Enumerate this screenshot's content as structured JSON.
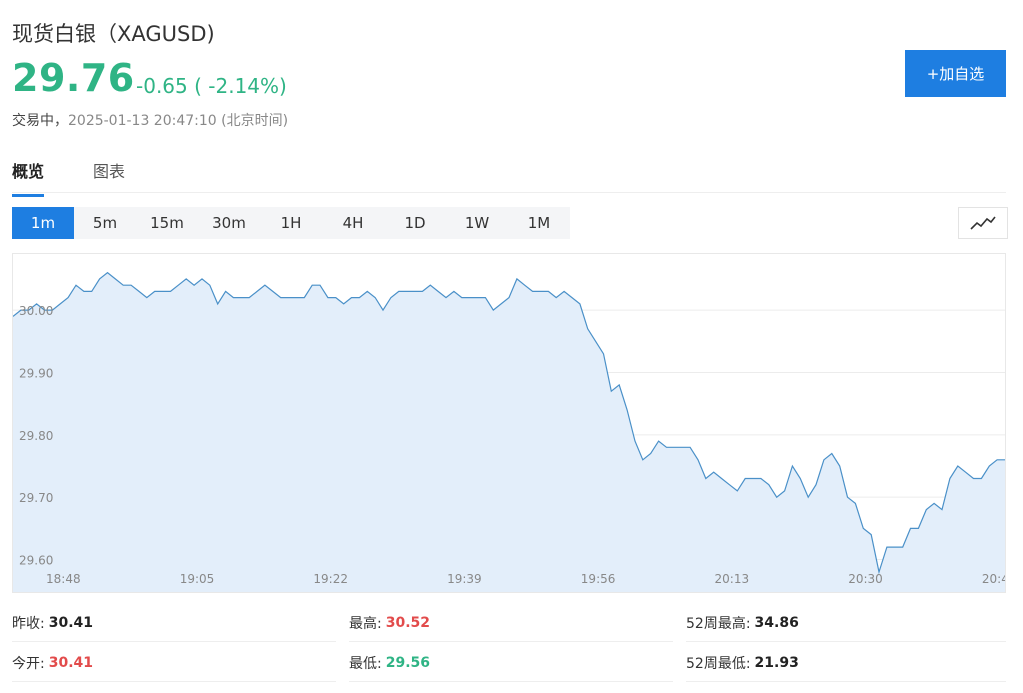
{
  "header": {
    "title": "现货白银（XAGUSD)",
    "price": "29.76",
    "change": "-0.65 ( -2.14%)",
    "status_label": "交易中，",
    "status_time": "2025-01-13 20:47:10 (北京时间)",
    "add_button": "+加自选"
  },
  "tabs": [
    {
      "label": "概览",
      "active": true
    },
    {
      "label": "图表",
      "active": false
    }
  ],
  "periods": [
    {
      "label": "1m",
      "active": true
    },
    {
      "label": "5m",
      "active": false
    },
    {
      "label": "15m",
      "active": false
    },
    {
      "label": "30m",
      "active": false
    },
    {
      "label": "1H",
      "active": false
    },
    {
      "label": "4H",
      "active": false
    },
    {
      "label": "1D",
      "active": false
    },
    {
      "label": "1W",
      "active": false
    },
    {
      "label": "1M",
      "active": false
    }
  ],
  "chart_icon": "line-chart-icon",
  "colors": {
    "accent": "#1e7ee1",
    "down": "#2fb485",
    "up": "#e24b4b",
    "line": "#4a90c8",
    "fill": "#e3eefa"
  },
  "chart_data": {
    "type": "area",
    "ylim": [
      29.58,
      30.09
    ],
    "y_ticks": [
      "30.00",
      "29.90",
      "29.80",
      "29.70",
      "29.60"
    ],
    "y_tick_values": [
      30.0,
      29.9,
      29.8,
      29.7,
      29.6
    ],
    "x_ticks": [
      "18:48",
      "19:05",
      "19:22",
      "19:39",
      "19:56",
      "20:13",
      "20:30",
      "20:4"
    ],
    "grid": true,
    "values": [
      29.99,
      30.0,
      30.0,
      30.01,
      30.0,
      30.0,
      30.01,
      30.02,
      30.04,
      30.03,
      30.03,
      30.05,
      30.06,
      30.05,
      30.04,
      30.04,
      30.03,
      30.02,
      30.03,
      30.03,
      30.03,
      30.04,
      30.05,
      30.04,
      30.05,
      30.04,
      30.01,
      30.03,
      30.02,
      30.02,
      30.02,
      30.03,
      30.04,
      30.03,
      30.02,
      30.02,
      30.02,
      30.02,
      30.04,
      30.04,
      30.02,
      30.02,
      30.01,
      30.02,
      30.02,
      30.03,
      30.02,
      30.0,
      30.02,
      30.03,
      30.03,
      30.03,
      30.03,
      30.04,
      30.03,
      30.02,
      30.03,
      30.02,
      30.02,
      30.02,
      30.02,
      30.0,
      30.01,
      30.02,
      30.05,
      30.04,
      30.03,
      30.03,
      30.03,
      30.02,
      30.03,
      30.02,
      30.01,
      29.97,
      29.95,
      29.93,
      29.87,
      29.88,
      29.84,
      29.79,
      29.76,
      29.77,
      29.79,
      29.78,
      29.78,
      29.78,
      29.78,
      29.76,
      29.73,
      29.74,
      29.73,
      29.72,
      29.71,
      29.73,
      29.73,
      29.73,
      29.72,
      29.7,
      29.71,
      29.75,
      29.73,
      29.7,
      29.72,
      29.76,
      29.77,
      29.75,
      29.7,
      29.69,
      29.65,
      29.64,
      29.58,
      29.62,
      29.62,
      29.62,
      29.65,
      29.65,
      29.68,
      29.69,
      29.68,
      29.73,
      29.75,
      29.74,
      29.73,
      29.73,
      29.75,
      29.76,
      29.76
    ]
  },
  "stats": [
    {
      "label": "昨收:",
      "value": "30.41",
      "color": "black"
    },
    {
      "label": "最高:",
      "value": "30.52",
      "color": "red"
    },
    {
      "label": "52周最高:",
      "value": "34.86",
      "color": "black"
    },
    {
      "label": "今开:",
      "value": "30.41",
      "color": "red"
    },
    {
      "label": "最低:",
      "value": "29.56",
      "color": "green"
    },
    {
      "label": "52周最低:",
      "value": "21.93",
      "color": "black"
    }
  ]
}
